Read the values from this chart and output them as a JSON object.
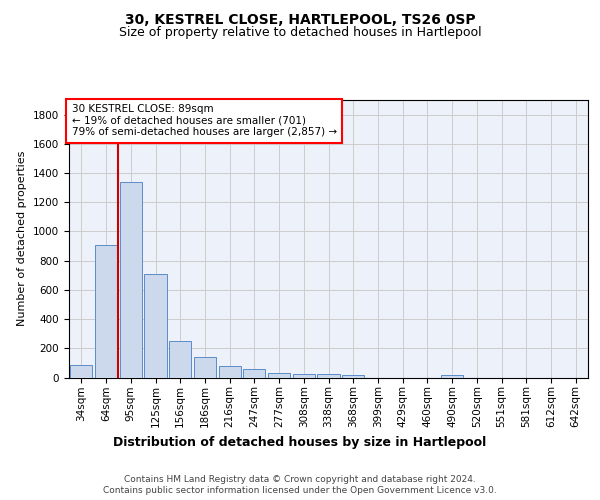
{
  "title": "30, KESTREL CLOSE, HARTLEPOOL, TS26 0SP",
  "subtitle": "Size of property relative to detached houses in Hartlepool",
  "xlabel": "Distribution of detached houses by size in Hartlepool",
  "ylabel": "Number of detached properties",
  "categories": [
    "34sqm",
    "64sqm",
    "95sqm",
    "125sqm",
    "156sqm",
    "186sqm",
    "216sqm",
    "247sqm",
    "277sqm",
    "308sqm",
    "338sqm",
    "368sqm",
    "399sqm",
    "429sqm",
    "460sqm",
    "490sqm",
    "520sqm",
    "551sqm",
    "581sqm",
    "612sqm",
    "642sqm"
  ],
  "values": [
    85,
    905,
    1340,
    710,
    248,
    140,
    80,
    55,
    30,
    22,
    22,
    15,
    0,
    0,
    0,
    20,
    0,
    0,
    0,
    0,
    0
  ],
  "bar_color": "#ccd9ed",
  "bar_edge_color": "#5b8cc8",
  "vline_color": "#cc0000",
  "vline_x": 1.5,
  "annotation_text": "30 KESTREL CLOSE: 89sqm\n← 19% of detached houses are smaller (701)\n79% of semi-detached houses are larger (2,857) →",
  "ylim": [
    0,
    1900
  ],
  "yticks": [
    0,
    200,
    400,
    600,
    800,
    1000,
    1200,
    1400,
    1600,
    1800
  ],
  "grid_color": "#cccccc",
  "bg_color": "#edf1f9",
  "footer": "Contains HM Land Registry data © Crown copyright and database right 2024.\nContains public sector information licensed under the Open Government Licence v3.0.",
  "title_fontsize": 10,
  "subtitle_fontsize": 9,
  "xlabel_fontsize": 9,
  "ylabel_fontsize": 8,
  "tick_fontsize": 7.5,
  "ann_fontsize": 7.5,
  "footer_fontsize": 6.5
}
